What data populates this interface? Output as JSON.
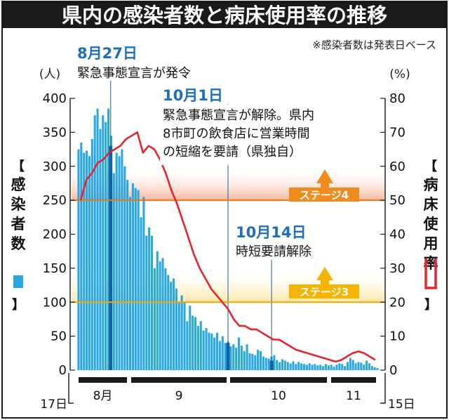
{
  "chart_data": {
    "type": "bar",
    "title": "県内の感染者数と病床使用率の推移",
    "note": "※感染者数は発表日ベース",
    "ylabel": "感染者数",
    "y2label": "病床使用率",
    "yunit": "(人)",
    "y2unit": "(%)",
    "ylim": [
      0,
      400
    ],
    "y2lim": [
      0,
      80
    ],
    "yticks": [
      "0",
      "50",
      "100",
      "150",
      "200",
      "250",
      "300",
      "350",
      "400"
    ],
    "y2ticks": [
      "0",
      "10",
      "20",
      "30",
      "40",
      "50",
      "60",
      "70",
      "80"
    ],
    "x_start_label": "17日",
    "x_end_label": "15日",
    "month_labels": [
      "8月",
      "9",
      "10",
      "11"
    ],
    "series": [
      {
        "name": "感染者数",
        "type": "bar",
        "color": "#29a8e0",
        "values": [
          325,
          335,
          320,
          323,
          315,
          340,
          375,
          385,
          355,
          375,
          365,
          385,
          345,
          290,
          320,
          315,
          325,
          300,
          280,
          255,
          275,
          268,
          265,
          225,
          255,
          198,
          210,
          198,
          150,
          175,
          160,
          165,
          150,
          140,
          130,
          135,
          120,
          100,
          110,
          100,
          72,
          95,
          80,
          78,
          65,
          72,
          58,
          62,
          55,
          54,
          48,
          55,
          43,
          50,
          40,
          42,
          35,
          38,
          33,
          48,
          36,
          28,
          38,
          25,
          24,
          22,
          30,
          28,
          20,
          18,
          17,
          20,
          22,
          15,
          12,
          16,
          14,
          12,
          10,
          13,
          9,
          12,
          10,
          9,
          8,
          10,
          8,
          9,
          7,
          8,
          6,
          9,
          7,
          8,
          5,
          8,
          10,
          9,
          6,
          12,
          18,
          15,
          10,
          12,
          11,
          8,
          14,
          10,
          6,
          4,
          3
        ]
      },
      {
        "name": "病床使用率",
        "type": "line",
        "color": "#e8242b",
        "values": [
          50,
          56,
          58,
          61,
          62,
          64,
          65,
          66,
          68,
          69,
          70,
          64,
          66,
          65,
          62,
          58,
          53,
          49,
          44,
          39,
          34,
          30,
          27,
          24,
          22,
          20,
          18,
          15,
          13,
          13,
          12,
          12,
          11,
          10,
          9,
          9,
          8,
          7,
          6,
          5.5,
          5,
          4.5,
          4,
          3.5,
          3,
          2.5,
          3,
          4,
          5,
          5.5,
          5,
          4,
          3
        ]
      }
    ],
    "reference_lines": [
      {
        "label": "ステージ4",
        "value": 50,
        "band_color": "#f7a988",
        "line_color": "#e67a1f"
      },
      {
        "label": "ステージ3",
        "value": 20,
        "band_color": "#fde49a",
        "line_color": "#f0a800"
      }
    ],
    "annotations": [
      {
        "date": "8月27日",
        "text": [
          "緊急事態宣言が発令"
        ]
      },
      {
        "date": "10月1日",
        "text": [
          "緊急事態宣言が解除。県内",
          "8市町の飲食店に営業時間",
          "の短縮を要請（県独自）"
        ]
      },
      {
        "date": "10月14日",
        "text": [
          "時短要請解除"
        ]
      }
    ],
    "colors": {
      "title_bg": "#1a1a1a",
      "title_fg": "#ffffff",
      "bar": "#29a8e0",
      "event_bar": "#1061a8",
      "line": "#e8242b",
      "date_text": "#1c6fbd"
    }
  }
}
